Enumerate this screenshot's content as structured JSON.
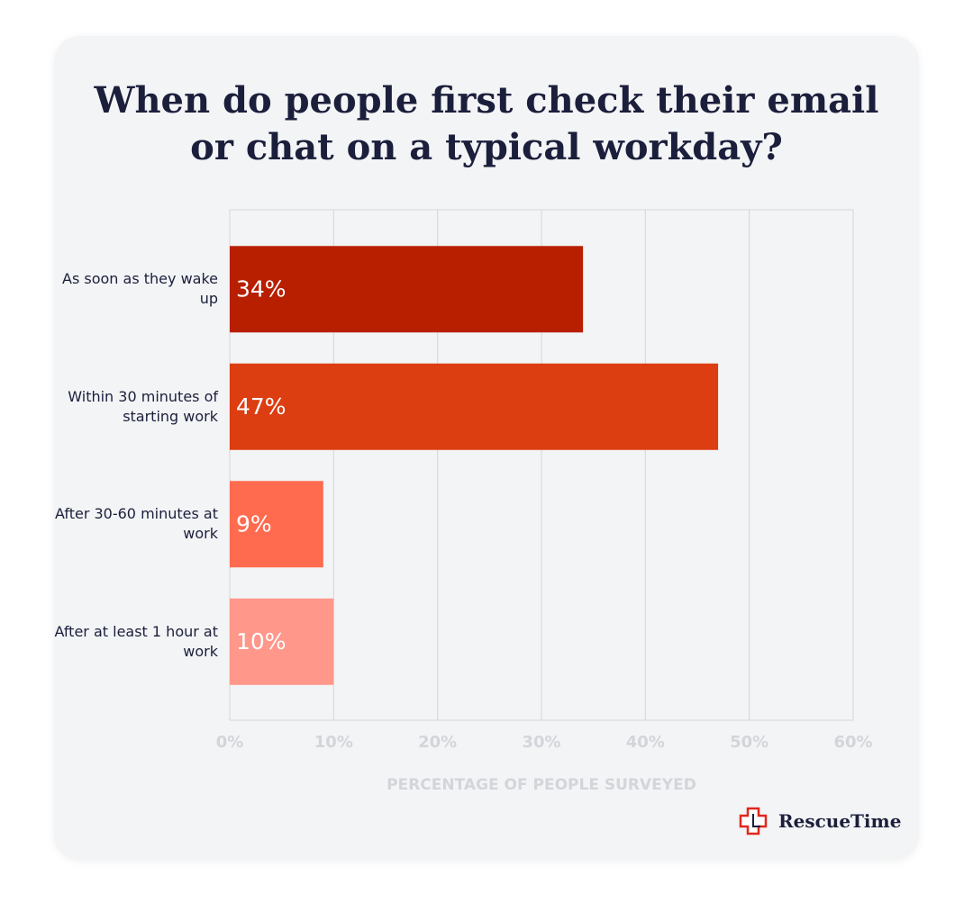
{
  "chart_data": {
    "type": "bar",
    "orientation": "horizontal",
    "title": "When do people first check their email or chat on a typical workday?",
    "categories": [
      "As soon as they wake up",
      "Within 30 minutes of starting work",
      "After 30-60 minutes at work",
      "After at least 1 hour at work"
    ],
    "values": [
      34,
      47,
      9,
      10
    ],
    "value_labels": [
      "34%",
      "47%",
      "9%",
      "10%"
    ],
    "colors": [
      "#b81f00",
      "#dc3d11",
      "#ff6b4f",
      "#ff978a"
    ],
    "xlabel": "PERCENTAGE OF PEOPLE SURVEYED",
    "xlim": [
      0,
      60
    ],
    "xticks": [
      {
        "value": 0,
        "label": "0%"
      },
      {
        "value": 10,
        "label": "10%"
      },
      {
        "value": 20,
        "label": "20%"
      },
      {
        "value": 30,
        "label": "30%"
      },
      {
        "value": 40,
        "label": "40%"
      },
      {
        "value": 50,
        "label": "50%"
      },
      {
        "value": 60,
        "label": "60%"
      }
    ],
    "grid": true
  },
  "brand": "RescueTime"
}
